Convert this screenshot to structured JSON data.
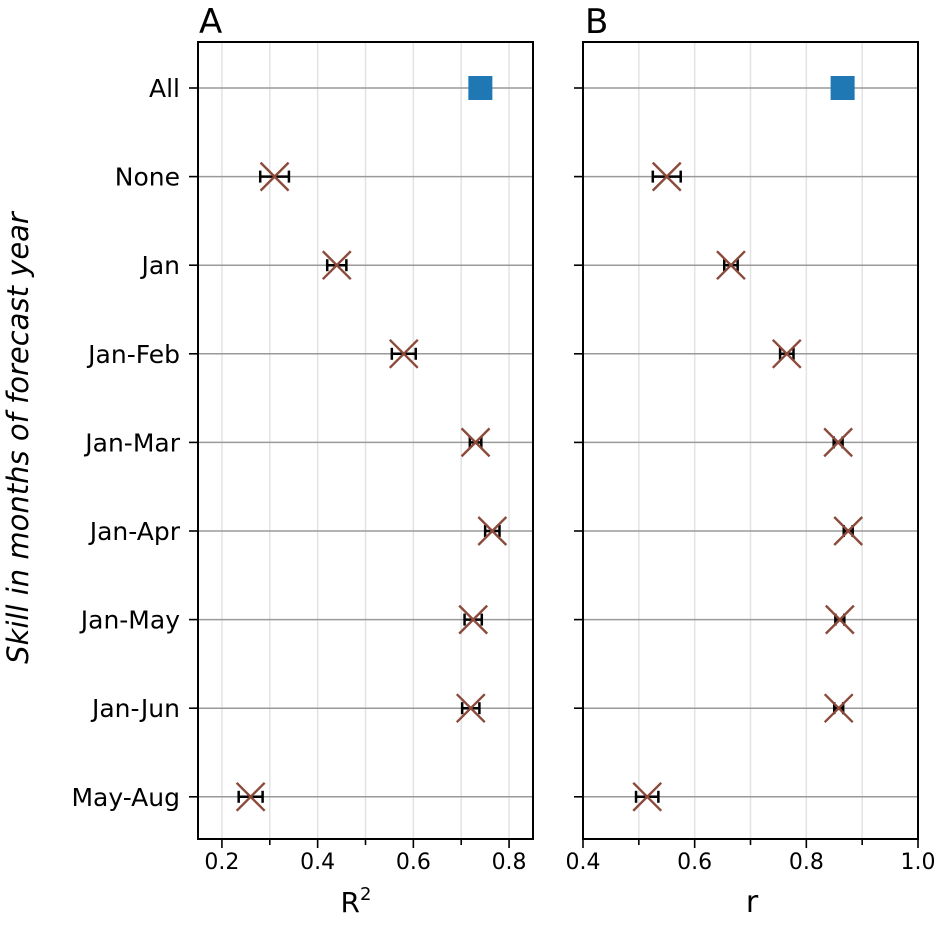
{
  "chart_data": [
    {
      "type": "scatter",
      "panel_label": "A",
      "xlabel_base": "R",
      "xlabel_sup": "2",
      "ylabel": "Skill in months of forecast year",
      "categories": [
        "All",
        "None",
        "Jan",
        "Jan-Feb",
        "Jan-Mar",
        "Jan-Apr",
        "Jan-May",
        "Jan-Jun",
        "May-Aug"
      ],
      "xlim": [
        0.15,
        0.85
      ],
      "xticks": [
        0.2,
        0.3,
        0.4,
        0.5,
        0.6,
        0.7,
        0.8
      ],
      "xtick_labels": [
        "0.2",
        "",
        "0.4",
        "",
        "0.6",
        "",
        "0.8"
      ],
      "grid": true,
      "all_value": 0.74,
      "values": [
        null,
        0.31,
        0.44,
        0.58,
        0.73,
        0.765,
        0.725,
        0.72,
        0.26
      ],
      "err": [
        null,
        0.03,
        0.02,
        0.025,
        0.012,
        0.015,
        0.018,
        0.018,
        0.025
      ],
      "marker_color": "#8b4a3a",
      "all_color": "#1f77b4"
    },
    {
      "type": "scatter",
      "panel_label": "B",
      "xlabel_base": "r",
      "xlabel_sup": "",
      "ylabel": "",
      "categories": [
        "All",
        "None",
        "Jan",
        "Jan-Feb",
        "Jan-Mar",
        "Jan-Apr",
        "Jan-May",
        "Jan-Jun",
        "May-Aug"
      ],
      "xlim": [
        0.4,
        1.0
      ],
      "xticks": [
        0.4,
        0.5,
        0.6,
        0.7,
        0.8,
        0.9,
        1.0
      ],
      "xtick_labels": [
        "0.4",
        "",
        "0.6",
        "",
        "0.8",
        "",
        "1.0"
      ],
      "grid": true,
      "all_value": 0.865,
      "values": [
        null,
        0.55,
        0.665,
        0.765,
        0.857,
        0.875,
        0.86,
        0.858,
        0.515
      ],
      "err": [
        null,
        0.025,
        0.012,
        0.012,
        0.008,
        0.008,
        0.008,
        0.008,
        0.02
      ],
      "marker_color": "#8b4a3a",
      "all_color": "#1f77b4"
    }
  ]
}
